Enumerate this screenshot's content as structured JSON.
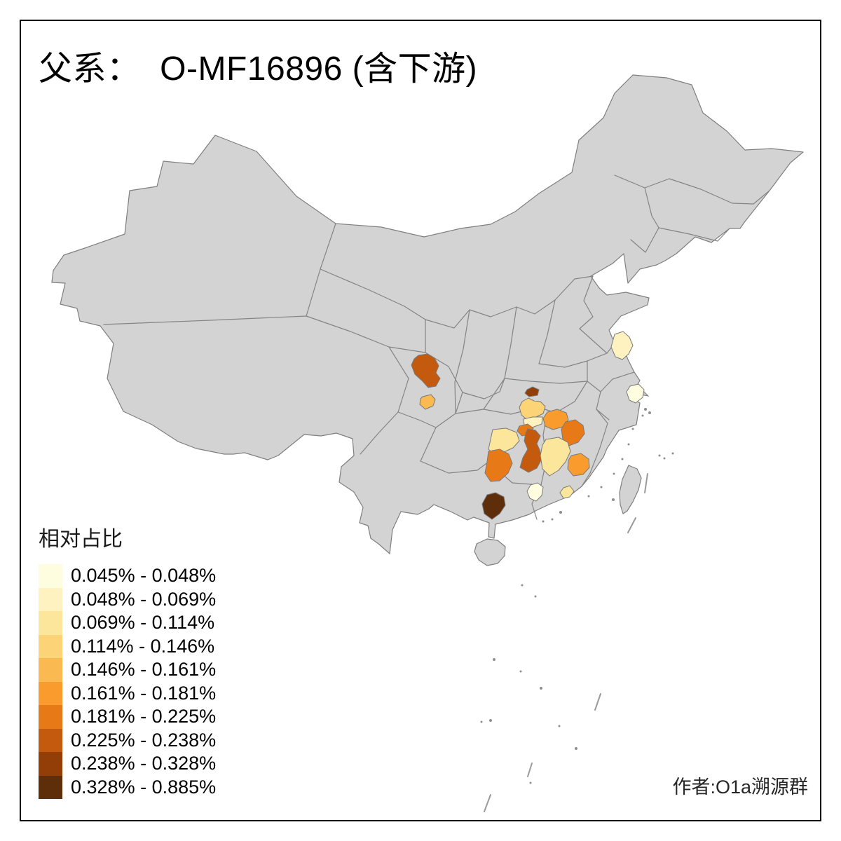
{
  "title": "父系：  O-MF16896 (含下游)",
  "attribution": "作者:O1a溯源群",
  "legend": {
    "title": "相对占比",
    "classes": [
      {
        "range": "0.045% - 0.048%",
        "color": "#FFFDE0"
      },
      {
        "range": "0.048% - 0.069%",
        "color": "#FEF3C0"
      },
      {
        "range": "0.069% - 0.114%",
        "color": "#FCE69C"
      },
      {
        "range": "0.114% - 0.146%",
        "color": "#FCD377"
      },
      {
        "range": "0.146% - 0.161%",
        "color": "#FBB951"
      },
      {
        "range": "0.161% - 0.181%",
        "color": "#F99C2D"
      },
      {
        "range": "0.181% - 0.225%",
        "color": "#E87917"
      },
      {
        "range": "0.225% - 0.238%",
        "color": "#C45A0D"
      },
      {
        "range": "0.238% - 0.328%",
        "color": "#933D07"
      },
      {
        "range": "0.328% - 0.885%",
        "color": "#5E2E0B"
      }
    ]
  },
  "map": {
    "land_color": "#D3D3D3",
    "border_color": "#848484",
    "background_color": "#FFFFFF",
    "frame_color": "#000000",
    "regions": [
      {
        "id": "sichuan-central",
        "class_index": 7
      },
      {
        "id": "sichuan-south",
        "class_index": 4
      },
      {
        "id": "hubei-small",
        "class_index": 8
      },
      {
        "id": "hunan-north",
        "class_index": 3
      },
      {
        "id": "hunan-north-pale",
        "class_index": 1
      },
      {
        "id": "hunan-center-small",
        "class_index": 6
      },
      {
        "id": "hunan-center-large",
        "class_index": 7
      },
      {
        "id": "hunan-west",
        "class_index": 2
      },
      {
        "id": "hunan-southwest",
        "class_index": 6
      },
      {
        "id": "jiangxi-northwest",
        "class_index": 5
      },
      {
        "id": "jiangxi-west",
        "class_index": 6
      },
      {
        "id": "jiangxi-center",
        "class_index": 2
      },
      {
        "id": "jiangxi-south",
        "class_index": 5
      },
      {
        "id": "guangxi-southeast",
        "class_index": 9
      },
      {
        "id": "guangdong-west",
        "class_index": 0
      },
      {
        "id": "guangdong-center",
        "class_index": 2
      },
      {
        "id": "jiangsu-coast",
        "class_index": 1
      },
      {
        "id": "jiangsu-south",
        "class_index": 0
      }
    ]
  },
  "chart_data": {
    "type": "choropleth",
    "title": "父系：  O-MF16896 (含下游)",
    "legend_title": "相对占比",
    "legend_position": "bottom-left",
    "basemap": "China prefecture-level map, uncolored areas gray",
    "bins": [
      "0.045% - 0.048%",
      "0.048% - 0.069%",
      "0.069% - 0.114%",
      "0.114% - 0.146%",
      "0.146% - 0.161%",
      "0.161% - 0.181%",
      "0.181% - 0.225%",
      "0.225% - 0.238%",
      "0.238% - 0.328%",
      "0.328% - 0.885%"
    ],
    "regions": [
      {
        "id": "sichuan-central",
        "bin": "0.225% - 0.238%"
      },
      {
        "id": "sichuan-south",
        "bin": "0.146% - 0.161%"
      },
      {
        "id": "hubei-small",
        "bin": "0.238% - 0.328%"
      },
      {
        "id": "hunan-north",
        "bin": "0.114% - 0.146%"
      },
      {
        "id": "hunan-north-pale",
        "bin": "0.048% - 0.069%"
      },
      {
        "id": "hunan-center-small",
        "bin": "0.181% - 0.225%"
      },
      {
        "id": "hunan-center-large",
        "bin": "0.225% - 0.238%"
      },
      {
        "id": "hunan-west",
        "bin": "0.069% - 0.114%"
      },
      {
        "id": "hunan-southwest",
        "bin": "0.181% - 0.225%"
      },
      {
        "id": "jiangxi-northwest",
        "bin": "0.161% - 0.181%"
      },
      {
        "id": "jiangxi-west",
        "bin": "0.181% - 0.225%"
      },
      {
        "id": "jiangxi-center",
        "bin": "0.069% - 0.114%"
      },
      {
        "id": "jiangxi-south",
        "bin": "0.161% - 0.181%"
      },
      {
        "id": "guangxi-southeast",
        "bin": "0.328% - 0.885%"
      },
      {
        "id": "guangdong-west",
        "bin": "0.045% - 0.048%"
      },
      {
        "id": "guangdong-center",
        "bin": "0.069% - 0.114%"
      },
      {
        "id": "jiangsu-coast",
        "bin": "0.048% - 0.069%"
      },
      {
        "id": "jiangsu-south",
        "bin": "0.045% - 0.048%"
      }
    ],
    "note": "Region ids are approximate geographic positions; prefecture names are not labeled in the source image."
  }
}
